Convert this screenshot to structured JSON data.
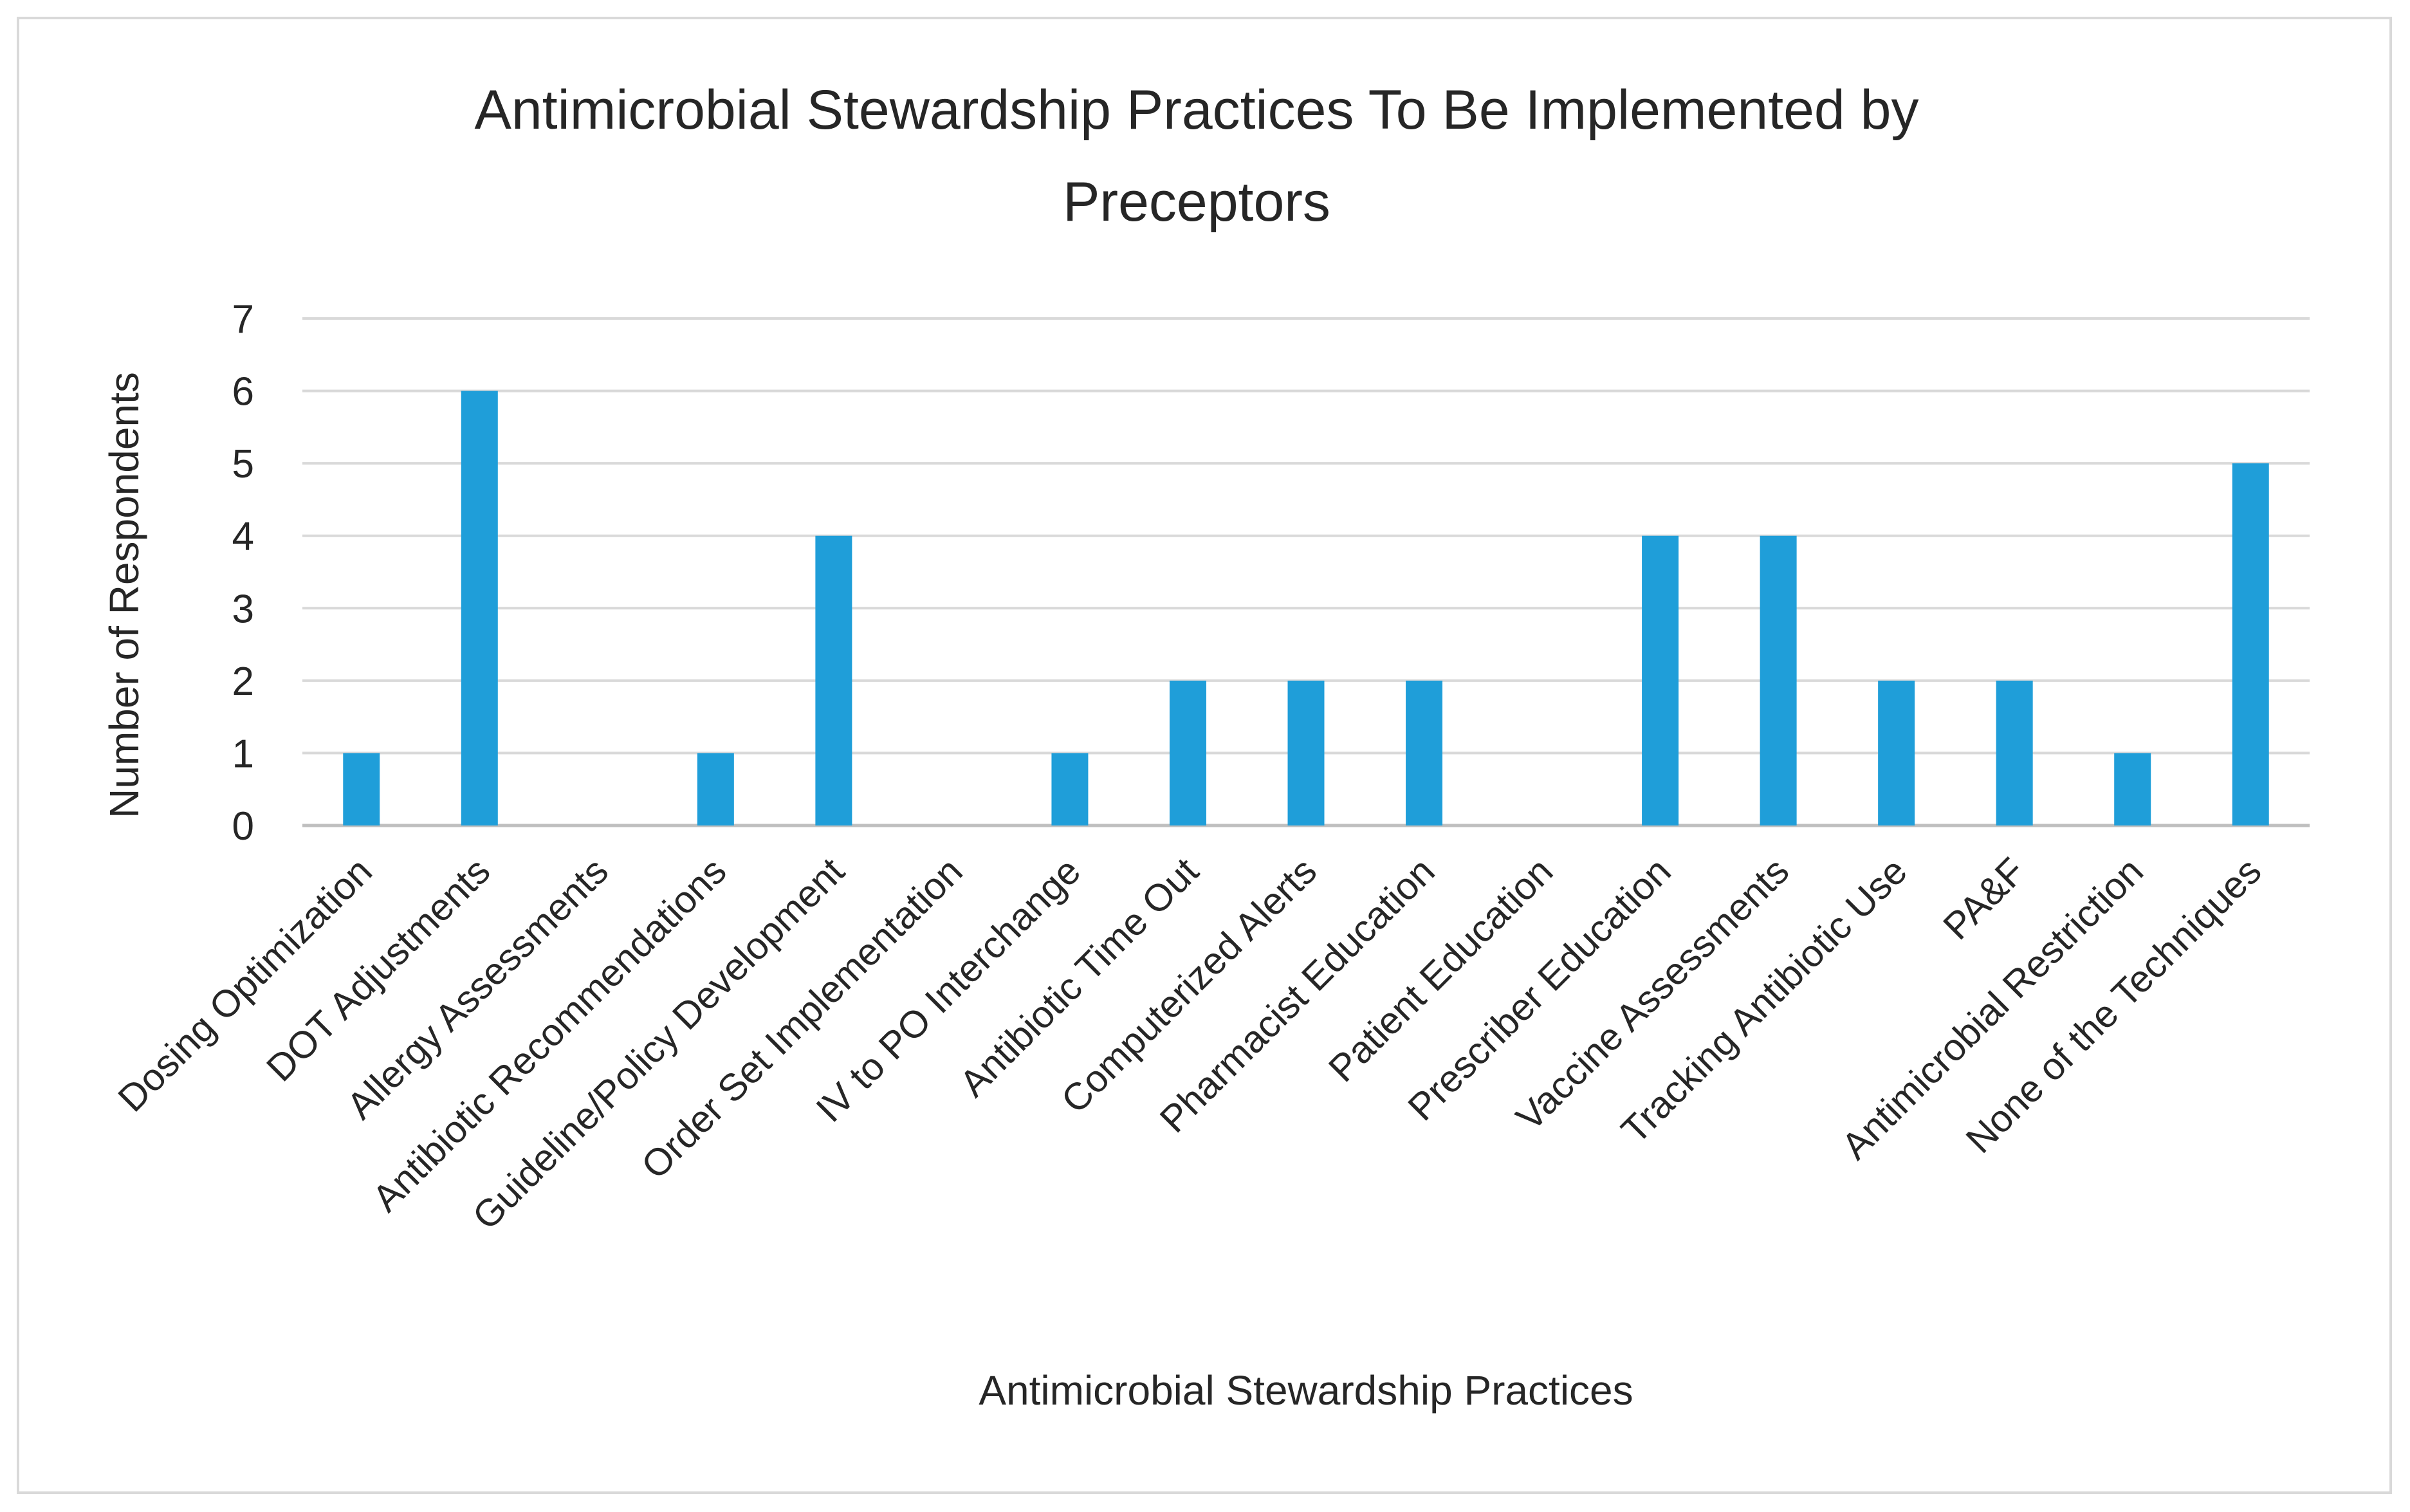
{
  "chart_data": {
    "type": "bar",
    "title": "Antimicrobial Stewardship Practices To Be Implemented by Preceptors",
    "title_lines": [
      "Antimicrobial Stewardship Practices To Be Implemented by",
      "Preceptors"
    ],
    "xlabel": "Antimicrobial Stewardship Practices",
    "ylabel": "Number of Respondents",
    "ylim": [
      0,
      7
    ],
    "yticks": [
      0,
      1,
      2,
      3,
      4,
      5,
      6,
      7
    ],
    "grid": true,
    "legend": "none",
    "bar_color": "#1f9ed9",
    "categories": [
      "Dosing Optimization",
      "DOT Adjustments",
      "Allergy Assessments",
      "Antibiotic Recommendations",
      "Guideline/Policy Development",
      "Order Set Implementation",
      "IV to PO Interchange",
      "Antibiotic Time Out",
      "Computerized Alerts",
      "Pharmacist Education",
      "Patient Education",
      "Prescriber Education",
      "Vaccine Assessments",
      "Tracking Antibiotic Use",
      "PA&F",
      "Antimicrobial Restriction",
      "None of the Techniques"
    ],
    "values": [
      1,
      6,
      0,
      1,
      4,
      0,
      1,
      2,
      2,
      2,
      0,
      4,
      4,
      2,
      2,
      1,
      5
    ]
  }
}
